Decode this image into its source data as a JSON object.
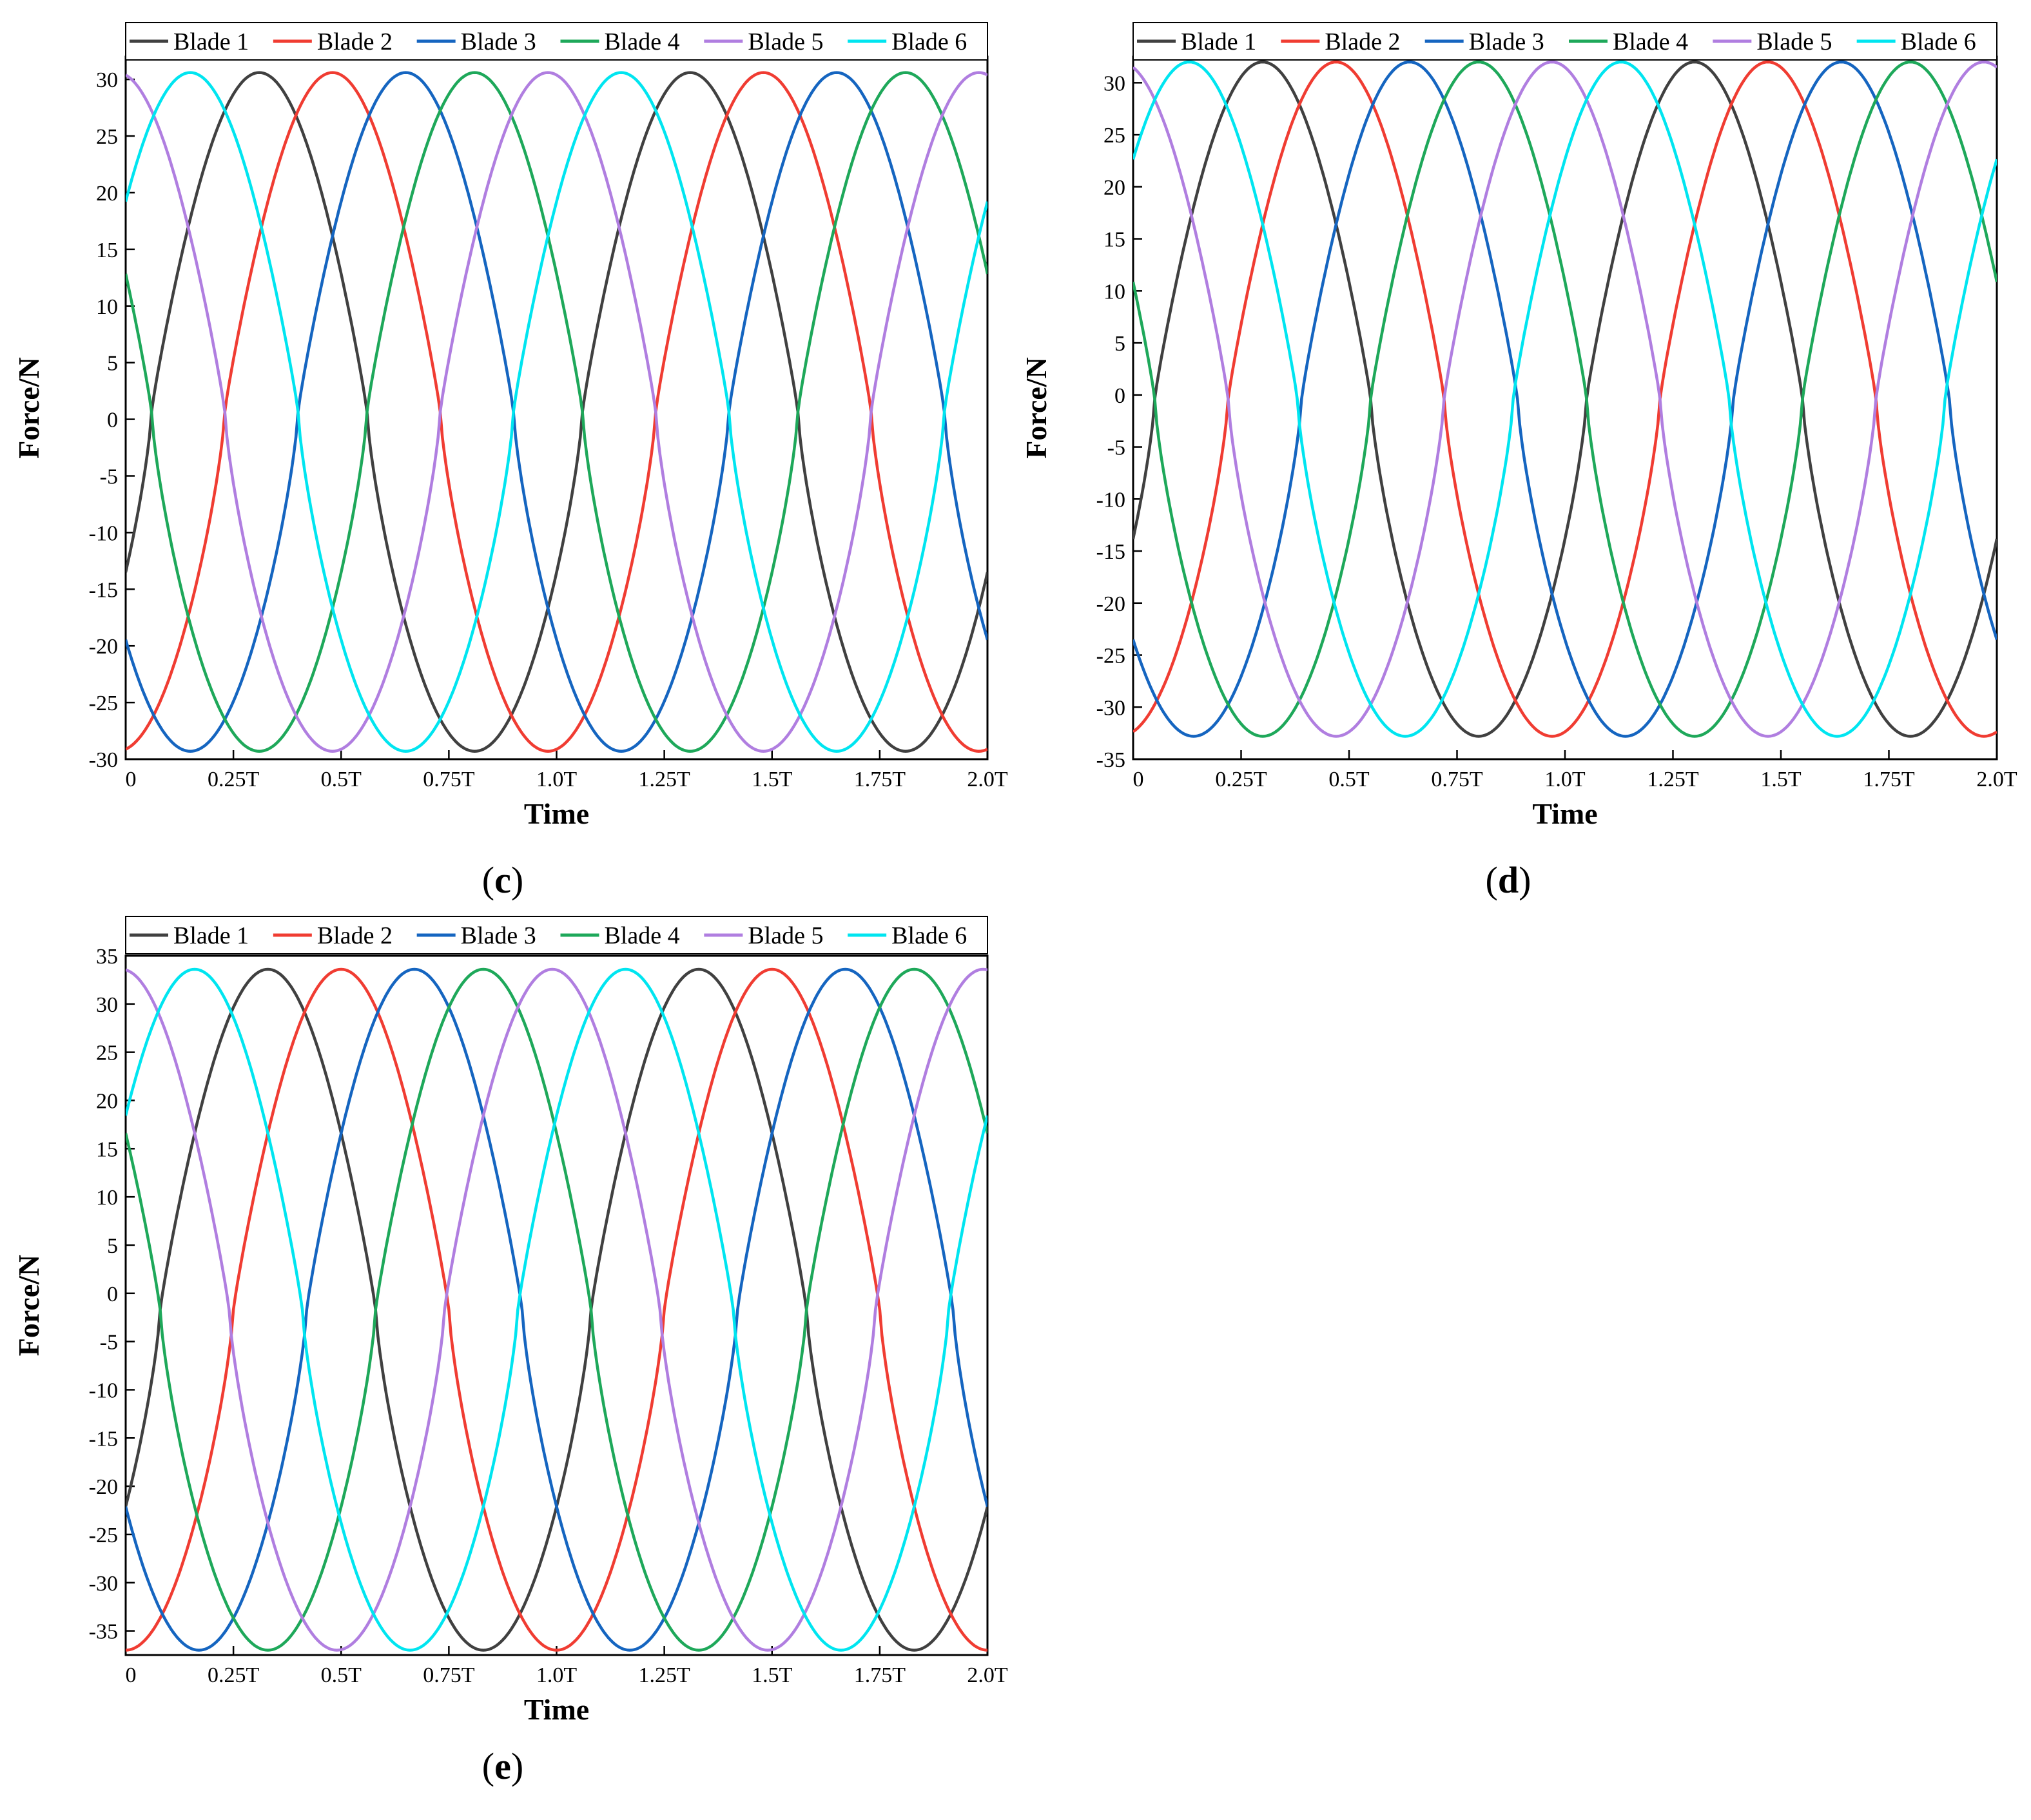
{
  "chart_data": [
    {
      "type": "line",
      "panel_label": "c",
      "xlabel": "Time",
      "ylabel": "Force/N",
      "x_tick_labels": [
        "0",
        "0.25T",
        "0.5T",
        "0.75T",
        "1.0T",
        "1.25T",
        "1.5T",
        "1.75T",
        "2.0T"
      ],
      "xlim": [
        0,
        2
      ],
      "ylim": [
        -30,
        32
      ],
      "yticks": [
        30,
        25,
        20,
        15,
        10,
        5,
        0,
        -5,
        -10,
        -15,
        -20,
        -25,
        -30
      ],
      "legend_position": "top",
      "amplitude": {
        "max": 30.6,
        "min": -29.3
      },
      "period_T": 1,
      "series": [
        {
          "name": "Blade 1",
          "color": "#404040",
          "peak_times": [
            0.31,
            1.31
          ],
          "start_value": -17
        },
        {
          "name": "Blade 2",
          "color": "#f03c32",
          "peak_times": [
            0.48,
            1.48
          ],
          "start_value": -29
        },
        {
          "name": "Blade 3",
          "color": "#1565c0",
          "peak_times": [
            0.65,
            1.65
          ],
          "start_value": -17
        },
        {
          "name": "Blade 4",
          "color": "#1ea85a",
          "peak_times": [
            0.81,
            1.81
          ],
          "start_value": 12
        },
        {
          "name": "Blade 5",
          "color": "#b07ee0",
          "peak_times": [
            0.98,
            1.98
          ],
          "start_value": 31
        },
        {
          "name": "Blade 6",
          "color": "#00e5f0",
          "peak_times": [
            0.15,
            1.15
          ],
          "start_value": 19
        }
      ]
    },
    {
      "type": "line",
      "panel_label": "d",
      "xlabel": "Time",
      "ylabel": "Force/N",
      "x_tick_labels": [
        "0",
        "0.25T",
        "0.5T",
        "0.75T",
        "1.0T",
        "1.25T",
        "1.5T",
        "1.75T",
        "2.0T"
      ],
      "xlim": [
        0,
        2
      ],
      "ylim": [
        -35,
        32.5
      ],
      "yticks": [
        30,
        25,
        20,
        15,
        10,
        5,
        0,
        -5,
        -10,
        -15,
        -20,
        -25,
        -30,
        -35
      ],
      "legend_position": "top",
      "amplitude": {
        "max": 32,
        "min": -32.8
      },
      "period_T": 1,
      "series": [
        {
          "name": "Blade 1",
          "color": "#404040",
          "peak_times": [
            0.3,
            1.3
          ],
          "start_value": -23
        },
        {
          "name": "Blade 2",
          "color": "#f03c32",
          "peak_times": [
            0.47,
            1.47
          ],
          "start_value": -30
        },
        {
          "name": "Blade 3",
          "color": "#1565c0",
          "peak_times": [
            0.64,
            1.64
          ],
          "start_value": -16
        },
        {
          "name": "Blade 4",
          "color": "#1ea85a",
          "peak_times": [
            0.8,
            1.8
          ],
          "start_value": 12
        },
        {
          "name": "Blade 5",
          "color": "#b07ee0",
          "peak_times": [
            0.97,
            1.97
          ],
          "start_value": 32
        },
        {
          "name": "Blade 6",
          "color": "#00e5f0",
          "peak_times": [
            0.13,
            1.13
          ],
          "start_value": 20
        }
      ]
    },
    {
      "type": "line",
      "panel_label": "e",
      "xlabel": "Time",
      "ylabel": "Force/N",
      "x_tick_labels": [
        "0",
        "0.25T",
        "0.5T",
        "0.75T",
        "1.0T",
        "1.25T",
        "1.5T",
        "1.75T",
        "2.0T"
      ],
      "xlim": [
        0,
        2
      ],
      "ylim": [
        -37.5,
        35
      ],
      "yticks": [
        35,
        30,
        25,
        20,
        15,
        10,
        5,
        0,
        -5,
        -10,
        -15,
        -20,
        -25,
        -30,
        -35
      ],
      "legend_position": "top",
      "amplitude": {
        "max": 33.6,
        "min": -37
      },
      "period_T": 1,
      "series": [
        {
          "name": "Blade 1",
          "color": "#404040",
          "peak_times": [
            0.33,
            1.33
          ],
          "start_value": -28
        },
        {
          "name": "Blade 2",
          "color": "#f03c32",
          "peak_times": [
            0.5,
            1.5
          ],
          "start_value": -32
        },
        {
          "name": "Blade 3",
          "color": "#1565c0",
          "peak_times": [
            0.67,
            1.67
          ],
          "start_value": -15
        },
        {
          "name": "Blade 4",
          "color": "#1ea85a",
          "peak_times": [
            0.83,
            1.83
          ],
          "start_value": 13
        },
        {
          "name": "Blade 5",
          "color": "#b07ee0",
          "peak_times": [
            0.99,
            1.99
          ],
          "start_value": 33
        },
        {
          "name": "Blade 6",
          "color": "#00e5f0",
          "peak_times": [
            0.16,
            1.16
          ],
          "start_value": 21
        }
      ]
    }
  ]
}
